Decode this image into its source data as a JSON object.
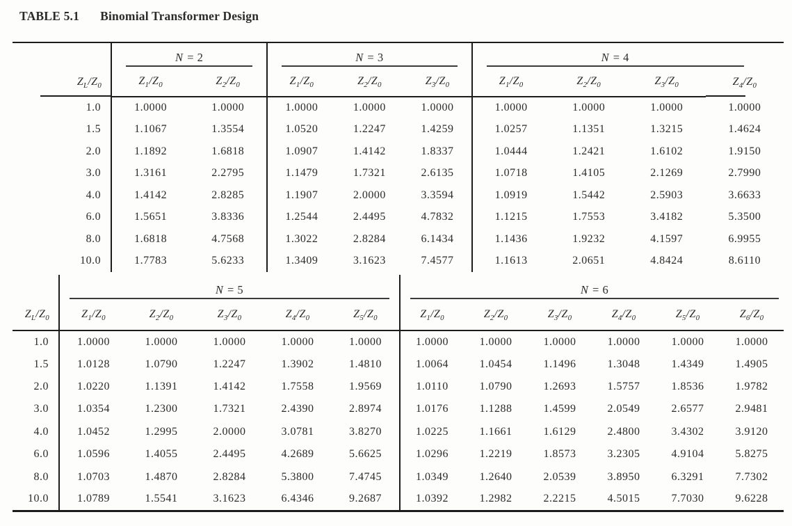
{
  "title": {
    "number": "TABLE 5.1",
    "caption": "Binomial Transformer Design"
  },
  "row_header": "Z_L/Z_0",
  "colors": {
    "ink": "#2b2b2b",
    "rule": "#1c1c1c",
    "background": "#fdfdfc"
  },
  "tables": [
    {
      "groups": [
        {
          "label": "N = 2",
          "columns": [
            "Z_1/Z_0",
            "Z_2/Z_0"
          ]
        },
        {
          "label": "N = 3",
          "columns": [
            "Z_1/Z_0",
            "Z_2/Z_0",
            "Z_3/Z_0"
          ]
        },
        {
          "label": "N = 4",
          "columns": [
            "Z_1/Z_0",
            "Z_2/Z_0",
            "Z_3/Z_0",
            "Z_4/Z_0"
          ]
        }
      ],
      "zl": [
        "1.0",
        "1.5",
        "2.0",
        "3.0",
        "4.0",
        "6.0",
        "8.0",
        "10.0"
      ],
      "rows": [
        [
          "1.0000",
          "1.0000",
          "1.0000",
          "1.0000",
          "1.0000",
          "1.0000",
          "1.0000",
          "1.0000",
          "1.0000"
        ],
        [
          "1.1067",
          "1.3554",
          "1.0520",
          "1.2247",
          "1.4259",
          "1.0257",
          "1.1351",
          "1.3215",
          "1.4624"
        ],
        [
          "1.1892",
          "1.6818",
          "1.0907",
          "1.4142",
          "1.8337",
          "1.0444",
          "1.2421",
          "1.6102",
          "1.9150"
        ],
        [
          "1.3161",
          "2.2795",
          "1.1479",
          "1.7321",
          "2.6135",
          "1.0718",
          "1.4105",
          "2.1269",
          "2.7990"
        ],
        [
          "1.4142",
          "2.8285",
          "1.1907",
          "2.0000",
          "3.3594",
          "1.0919",
          "1.5442",
          "2.5903",
          "3.6633"
        ],
        [
          "1.5651",
          "3.8336",
          "1.2544",
          "2.4495",
          "4.7832",
          "1.1215",
          "1.7553",
          "3.4182",
          "5.3500"
        ],
        [
          "1.6818",
          "4.7568",
          "1.3022",
          "2.8284",
          "6.1434",
          "1.1436",
          "1.9232",
          "4.1597",
          "6.9955"
        ],
        [
          "1.7783",
          "5.6233",
          "1.3409",
          "3.1623",
          "7.4577",
          "1.1613",
          "2.0651",
          "4.8424",
          "8.6110"
        ]
      ]
    },
    {
      "groups": [
        {
          "label": "N = 5",
          "columns": [
            "Z_1/Z_0",
            "Z_2/Z_0",
            "Z_3/Z_0",
            "Z_4/Z_0",
            "Z_5/Z_0"
          ]
        },
        {
          "label": "N = 6",
          "columns": [
            "Z_1/Z_0",
            "Z_2/Z_0",
            "Z_3/Z_0",
            "Z_4/Z_0",
            "Z_5/Z_0",
            "Z_6/Z_0"
          ]
        }
      ],
      "zl": [
        "1.0",
        "1.5",
        "2.0",
        "3.0",
        "4.0",
        "6.0",
        "8.0",
        "10.0"
      ],
      "rows": [
        [
          "1.0000",
          "1.0000",
          "1.0000",
          "1.0000",
          "1.0000",
          "1.0000",
          "1.0000",
          "1.0000",
          "1.0000",
          "1.0000",
          "1.0000"
        ],
        [
          "1.0128",
          "1.0790",
          "1.2247",
          "1.3902",
          "1.4810",
          "1.0064",
          "1.0454",
          "1.1496",
          "1.3048",
          "1.4349",
          "1.4905"
        ],
        [
          "1.0220",
          "1.1391",
          "1.4142",
          "1.7558",
          "1.9569",
          "1.0110",
          "1.0790",
          "1.2693",
          "1.5757",
          "1.8536",
          "1.9782"
        ],
        [
          "1.0354",
          "1.2300",
          "1.7321",
          "2.4390",
          "2.8974",
          "1.0176",
          "1.1288",
          "1.4599",
          "2.0549",
          "2.6577",
          "2.9481"
        ],
        [
          "1.0452",
          "1.2995",
          "2.0000",
          "3.0781",
          "3.8270",
          "1.0225",
          "1.1661",
          "1.6129",
          "2.4800",
          "3.4302",
          "3.9120"
        ],
        [
          "1.0596",
          "1.4055",
          "2.4495",
          "4.2689",
          "5.6625",
          "1.0296",
          "1.2219",
          "1.8573",
          "3.2305",
          "4.9104",
          "5.8275"
        ],
        [
          "1.0703",
          "1.4870",
          "2.8284",
          "5.3800",
          "7.4745",
          "1.0349",
          "1.2640",
          "2.0539",
          "3.8950",
          "6.3291",
          "7.7302"
        ],
        [
          "1.0789",
          "1.5541",
          "3.1623",
          "6.4346",
          "9.2687",
          "1.0392",
          "1.2982",
          "2.2215",
          "4.5015",
          "7.7030",
          "9.6228"
        ]
      ]
    }
  ]
}
